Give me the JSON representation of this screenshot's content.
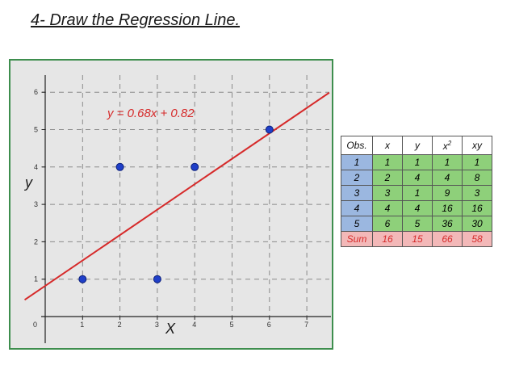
{
  "title": "4- Draw the Regression Line.",
  "chart_data": {
    "type": "scatter",
    "x": [
      1,
      2,
      3,
      4,
      6
    ],
    "y": [
      1,
      4,
      1,
      4,
      5
    ],
    "xlabel": "X",
    "ylabel": "y",
    "xlim": [
      0,
      7.7
    ],
    "ylim": [
      0,
      6.5
    ],
    "x_ticks": [
      "0",
      "1",
      "2",
      "3",
      "4",
      "5",
      "6",
      "7"
    ],
    "y_ticks": [
      "1",
      "2",
      "3",
      "4",
      "5",
      "6"
    ],
    "regression": {
      "slope": 0.68,
      "intercept": 0.82,
      "label": "y = 0.68x + 0.82",
      "color": "#d62a2a"
    },
    "point_color": "#1f3fc8",
    "background": "#e6e6e6",
    "border_color": "#3e8e4e",
    "grid": true
  },
  "table": {
    "headers": [
      "Obs.",
      "x",
      "y",
      "x",
      "xy"
    ],
    "header_superscript": "2",
    "rows": [
      [
        "1",
        "1",
        "1",
        "1",
        "1"
      ],
      [
        "2",
        "2",
        "4",
        "4",
        "8"
      ],
      [
        "3",
        "3",
        "1",
        "9",
        "3"
      ],
      [
        "4",
        "4",
        "4",
        "16",
        "16"
      ],
      [
        "5",
        "6",
        "5",
        "36",
        "30"
      ]
    ],
    "sum_row": [
      "Sum",
      "16",
      "15",
      "66",
      "58"
    ]
  }
}
